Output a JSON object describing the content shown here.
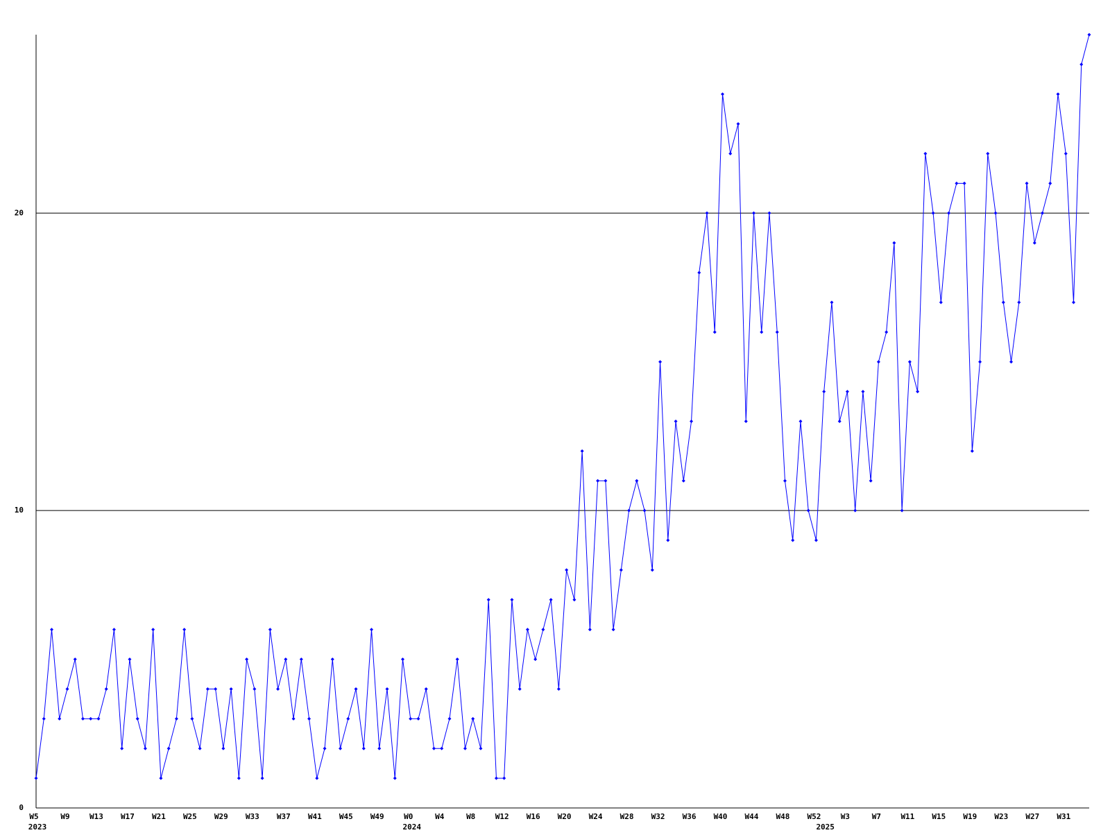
{
  "chart_data": {
    "type": "line",
    "categories": [
      "W5",
      null,
      null,
      null,
      "W9",
      null,
      null,
      null,
      "W13",
      null,
      null,
      null,
      "W17",
      null,
      null,
      null,
      "W21",
      null,
      null,
      null,
      "W25",
      null,
      null,
      null,
      "W29",
      null,
      null,
      null,
      "W33",
      null,
      null,
      null,
      "W37",
      null,
      null,
      null,
      "W41",
      null,
      null,
      null,
      "W45",
      null,
      null,
      null,
      "W49",
      null,
      null,
      null,
      "W0",
      null,
      null,
      null,
      "W4",
      null,
      null,
      null,
      "W8",
      null,
      null,
      null,
      "W12",
      null,
      null,
      null,
      "W16",
      null,
      null,
      null,
      "W20",
      null,
      null,
      null,
      "W24",
      null,
      null,
      null,
      "W28",
      null,
      null,
      null,
      "W32",
      null,
      null,
      null,
      "W36",
      null,
      null,
      null,
      "W40",
      null,
      null,
      null,
      "W44",
      null,
      null,
      null,
      "W48",
      null,
      null,
      null,
      "W52",
      null,
      null,
      null,
      "W3",
      null,
      null,
      null,
      "W7",
      null,
      null,
      null,
      "W11",
      null,
      null,
      null,
      "W15",
      null,
      null,
      null,
      "W19",
      null,
      null,
      null,
      "W23",
      null,
      null,
      null,
      "W27",
      null,
      null,
      null,
      "W31",
      null,
      null,
      null
    ],
    "years": [
      "2023",
      null,
      null,
      null,
      null,
      null,
      null,
      null,
      null,
      null,
      null,
      null,
      null,
      null,
      null,
      null,
      null,
      null,
      null,
      null,
      null,
      null,
      null,
      null,
      null,
      null,
      null,
      null,
      null,
      null,
      null,
      null,
      null,
      null,
      null,
      null,
      null,
      null,
      null,
      null,
      null,
      null,
      null,
      null,
      null,
      null,
      null,
      null,
      "2024",
      null,
      null,
      null,
      null,
      null,
      null,
      null,
      null,
      null,
      null,
      null,
      null,
      null,
      null,
      null,
      null,
      null,
      null,
      null,
      null,
      null,
      null,
      null,
      null,
      null,
      null,
      null,
      null,
      null,
      null,
      null,
      null,
      null,
      null,
      null,
      null,
      null,
      null,
      null,
      null,
      null,
      null,
      null,
      null,
      null,
      null,
      null,
      null,
      null,
      null,
      null,
      null,
      "2025",
      null,
      null,
      null,
      null,
      null,
      null,
      null,
      null,
      null,
      null,
      null,
      null,
      null,
      null,
      null,
      null,
      null,
      null,
      null,
      null,
      null,
      null,
      null,
      null,
      null,
      null,
      null,
      null,
      null,
      null,
      null,
      null,
      null,
      null
    ],
    "series": [
      {
        "color": "#0000ff",
        "values": [
          1,
          3,
          6,
          3,
          4,
          5,
          3,
          3,
          3,
          4,
          6,
          2,
          5,
          3,
          2,
          6,
          1,
          2,
          3,
          6,
          3,
          2,
          4,
          4,
          2,
          4,
          1,
          5,
          4,
          1,
          6,
          4,
          5,
          3,
          5,
          3,
          1,
          2,
          5,
          2,
          3,
          4,
          2,
          6,
          2,
          4,
          1,
          5,
          3,
          3,
          4,
          2,
          2,
          3,
          5,
          2,
          3,
          2,
          7,
          1,
          1,
          7,
          4,
          6,
          5,
          6,
          7,
          4,
          8,
          7,
          12,
          6,
          11,
          11,
          6,
          8,
          10,
          11,
          10,
          8,
          15,
          9,
          13,
          11,
          13,
          18,
          20,
          16,
          24,
          22,
          23,
          13,
          20,
          16,
          20,
          16,
          11,
          9,
          13,
          10,
          9,
          14,
          17,
          13,
          14,
          10,
          14,
          11,
          15,
          16,
          19,
          10,
          15,
          14,
          22,
          20,
          17,
          20,
          21,
          21,
          12,
          15,
          22,
          20,
          17,
          15,
          17,
          21,
          19,
          20,
          21,
          24,
          22,
          17,
          25,
          26
        ]
      }
    ],
    "ylim": [
      0,
      26
    ],
    "yticks": [
      0,
      10,
      20
    ],
    "grid": true,
    "grid_color": "#000000"
  }
}
